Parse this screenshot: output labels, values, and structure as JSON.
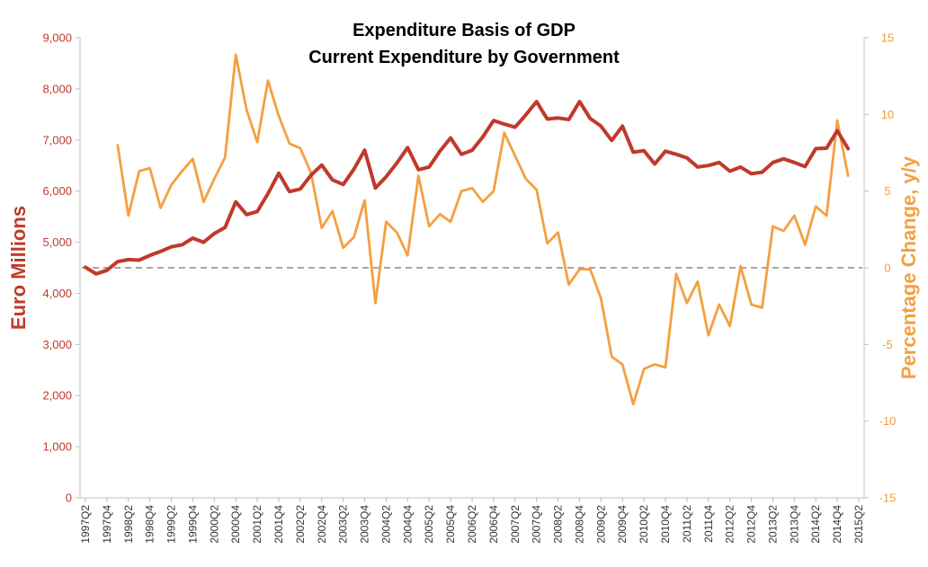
{
  "chart_data": {
    "type": "line",
    "title": "Expenditure Basis of GDP",
    "subtitle": "Current Expenditure by Government",
    "xlabel": "",
    "ylabel_left": "Euro Millions",
    "ylabel_right": "Percentage Change, y/y",
    "ylim_left": [
      0,
      9000
    ],
    "ylim_right": [
      -15,
      15
    ],
    "yticks_left": [
      "0",
      "1,000",
      "2,000",
      "3,000",
      "4,000",
      "5,000",
      "6,000",
      "7,000",
      "8,000",
      "9,000"
    ],
    "yticks_right": [
      "-15",
      "-10",
      "-5",
      "0",
      "5",
      "10",
      "15"
    ],
    "x_tick_labels": [
      "1997Q2",
      "1997Q4",
      "1998Q2",
      "1998Q4",
      "1999Q2",
      "1999Q4",
      "2000Q2",
      "2000Q4",
      "2001Q2",
      "2001Q4",
      "2002Q2",
      "2002Q4",
      "2003Q2",
      "2003Q4",
      "2004Q2",
      "2004Q4",
      "2005Q2",
      "2005Q4",
      "2006Q2",
      "2006Q4",
      "2007Q2",
      "2007Q4",
      "2008Q2",
      "2008Q4",
      "2009Q2",
      "2009Q4",
      "2010Q2",
      "2010Q4",
      "2011Q2",
      "2011Q4",
      "2012Q2",
      "2012Q4",
      "2013Q2",
      "2013Q4",
      "2014Q2",
      "2014Q4",
      "2015Q2"
    ],
    "reference_line": {
      "axis": "right",
      "value": 0,
      "style": "dashed"
    },
    "colors": {
      "level": "#c0392b",
      "change": "#f4a040",
      "reference": "#888888",
      "axis": "#bfbfbf"
    },
    "series": [
      {
        "name": "Current Expenditure (Euro Millions)",
        "axis": "left",
        "start_quarter": "1997Q2",
        "values": [
          4510,
          4380,
          4450,
          4620,
          4660,
          4650,
          4740,
          4820,
          4910,
          4950,
          5080,
          5000,
          5170,
          5290,
          5790,
          5540,
          5600,
          5950,
          6350,
          5990,
          6040,
          6310,
          6510,
          6220,
          6130,
          6430,
          6800,
          6060,
          6280,
          6550,
          6850,
          6420,
          6470,
          6780,
          7040,
          6720,
          6800,
          7060,
          7380,
          7310,
          7250,
          7490,
          7750,
          7410,
          7430,
          7400,
          7750,
          7420,
          7270,
          6990,
          7270,
          6760,
          6790,
          6530,
          6780,
          6720,
          6650,
          6470,
          6500,
          6560,
          6390,
          6470,
          6340,
          6370,
          6560,
          6630,
          6560,
          6480,
          6830,
          6840,
          7180,
          6830
        ]
      },
      {
        "name": "Percentage Change, y/y",
        "axis": "right",
        "start_quarter": "1998Q1",
        "values": [
          8.0,
          3.4,
          6.3,
          6.5,
          3.9,
          5.4,
          6.3,
          7.1,
          4.3,
          5.8,
          7.2,
          13.9,
          10.3,
          8.2,
          12.2,
          9.9,
          8.1,
          7.8,
          6.2,
          2.6,
          3.7,
          1.3,
          2.0,
          4.4,
          -2.3,
          3.0,
          2.3,
          0.8,
          6.0,
          2.7,
          3.5,
          3.0,
          5.0,
          5.2,
          4.3,
          5.0,
          8.8,
          7.3,
          5.8,
          5.1,
          1.6,
          2.3,
          -1.1,
          -0.1,
          -0.1,
          -2.0,
          -5.8,
          -6.3,
          -8.9,
          -6.6,
          -6.3,
          -6.5,
          -0.4,
          -2.3,
          -0.9,
          -4.4,
          -2.4,
          -3.8,
          0.1,
          -2.4,
          -2.6,
          2.7,
          2.4,
          3.4,
          1.5,
          4.0,
          3.4,
          9.6,
          6.0
        ]
      }
    ]
  }
}
